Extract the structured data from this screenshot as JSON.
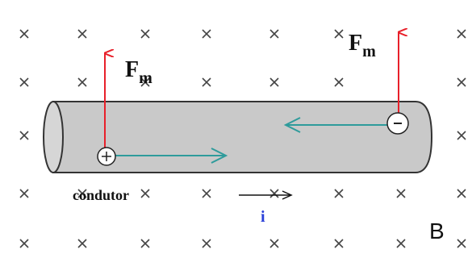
{
  "labels": {
    "force_left": {
      "symbol": "F",
      "subscript": "m"
    },
    "force_right": {
      "symbol": "F",
      "subscript": "m"
    },
    "conductor": "condutor",
    "current": "i",
    "field": "B"
  }
}
